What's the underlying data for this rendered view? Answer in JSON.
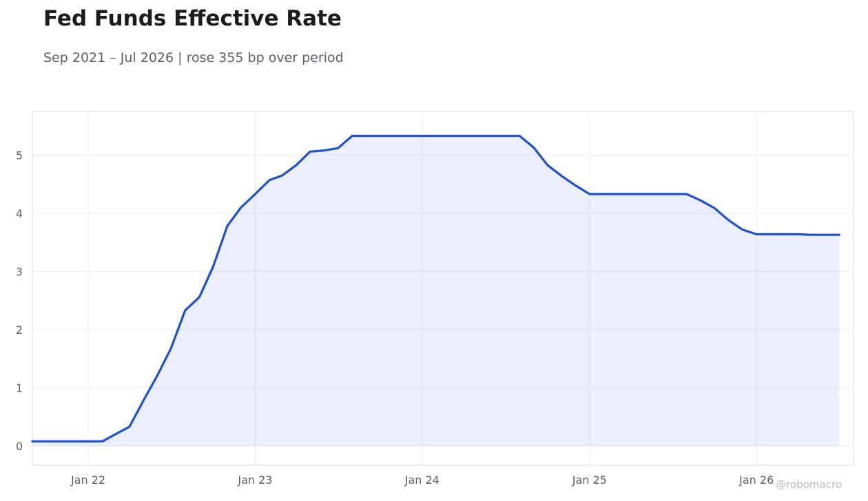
{
  "header": {
    "title": "Fed Funds Effective Rate",
    "subtitle": "Sep 2021 – Jul 2026 | rose 355 bp over period"
  },
  "credit": "@robomacro",
  "colors": {
    "line": "#1f4fd1",
    "fill": "#1f4fd1",
    "grid": "#ececf0",
    "frame": "#dedee4",
    "tick_text": "#5e5e66"
  },
  "chart_data": {
    "type": "area",
    "title": "Fed Funds Effective Rate",
    "subtitle": "Sep 2021 – Jul 2026 | rose 355 bp over period",
    "xlabel": "",
    "ylabel": "",
    "grid": true,
    "legend": "none",
    "x_range": [
      "2021-09-01",
      "2026-08-01"
    ],
    "ylim": [
      -0.33,
      5.75
    ],
    "x_ticks": [
      {
        "date": "2022-01-01",
        "label": "Jan 22"
      },
      {
        "date": "2023-01-01",
        "label": "Jan 23"
      },
      {
        "date": "2024-01-01",
        "label": "Jan 24"
      },
      {
        "date": "2025-01-01",
        "label": "Jan 25"
      },
      {
        "date": "2026-01-01",
        "label": "Jan 26"
      }
    ],
    "y_ticks": [
      0,
      1,
      2,
      3,
      4,
      5
    ],
    "series": [
      {
        "x": [
          "2021-09-01",
          "2021-10-01",
          "2021-11-01",
          "2021-12-01",
          "2022-01-01",
          "2022-02-01",
          "2022-03-01",
          "2022-04-01",
          "2022-05-01",
          "2022-06-01",
          "2022-07-01",
          "2022-08-01",
          "2022-09-01",
          "2022-10-01",
          "2022-11-01",
          "2022-12-01",
          "2023-01-01",
          "2023-02-01",
          "2023-03-01",
          "2023-04-01",
          "2023-05-01",
          "2023-06-01",
          "2023-07-01",
          "2023-08-01",
          "2023-09-01",
          "2023-10-01",
          "2023-11-01",
          "2023-12-01",
          "2024-01-01",
          "2024-02-01",
          "2024-03-01",
          "2024-04-01",
          "2024-05-01",
          "2024-06-01",
          "2024-07-01",
          "2024-08-01",
          "2024-09-01",
          "2024-10-01",
          "2024-11-01",
          "2024-12-01",
          "2025-01-01",
          "2025-02-01",
          "2025-03-01",
          "2025-04-01",
          "2025-05-01",
          "2025-06-01",
          "2025-07-01",
          "2025-08-01",
          "2025-09-01",
          "2025-10-01",
          "2025-11-01",
          "2025-12-01",
          "2026-01-01",
          "2026-02-01",
          "2026-03-01",
          "2026-04-01",
          "2026-05-01",
          "2026-06-01",
          "2026-07-01"
        ],
        "values": [
          0.08,
          0.08,
          0.08,
          0.08,
          0.08,
          0.08,
          0.2,
          0.33,
          0.77,
          1.21,
          1.68,
          2.33,
          2.56,
          3.08,
          3.78,
          4.1,
          4.33,
          4.57,
          4.65,
          4.83,
          5.06,
          5.08,
          5.12,
          5.33,
          5.33,
          5.33,
          5.33,
          5.33,
          5.33,
          5.33,
          5.33,
          5.33,
          5.33,
          5.33,
          5.33,
          5.33,
          5.13,
          4.83,
          4.64,
          4.48,
          4.33,
          4.33,
          4.33,
          4.33,
          4.33,
          4.33,
          4.33,
          4.33,
          4.22,
          4.09,
          3.88,
          3.72,
          3.64,
          3.64,
          3.64,
          3.64,
          3.63,
          3.63,
          3.63
        ]
      }
    ]
  }
}
